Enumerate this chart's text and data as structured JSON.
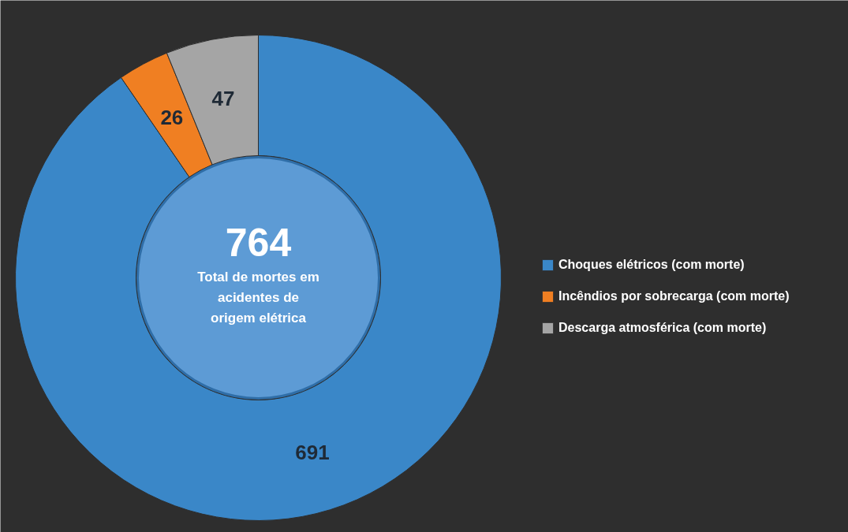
{
  "chart_data": {
    "type": "donut",
    "categories": [
      "Choques elétricos (com morte)",
      "Incêndios por sobrecarga (com morte)",
      "Descarga atmosférica (com morte)"
    ],
    "values": [
      691,
      26,
      47
    ],
    "colors": [
      "#3a87c8",
      "#f07f22",
      "#a5a5a5"
    ],
    "data_labels": true,
    "legend": "right",
    "annotations": [
      "764",
      "Total de mortes em acidentes de origem elétrica"
    ]
  }
}
